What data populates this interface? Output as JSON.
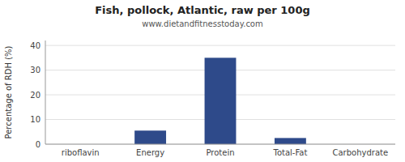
{
  "chart_data": {
    "type": "bar",
    "title": "Fish, pollock, Atlantic, raw per 100g",
    "subtitle": "www.dietandfitnesstoday.com",
    "categories": [
      "riboflavin",
      "Energy",
      "Protein",
      "Total-Fat",
      "Carbohydrate"
    ],
    "values": [
      0,
      5.5,
      35,
      2.5,
      0
    ],
    "color": "#2e4a8a",
    "ylabel": "Percentage of RDH (%)",
    "ylim": [
      0,
      42
    ],
    "yticks": [
      0,
      10,
      20,
      30,
      40
    ],
    "grid": true
  }
}
